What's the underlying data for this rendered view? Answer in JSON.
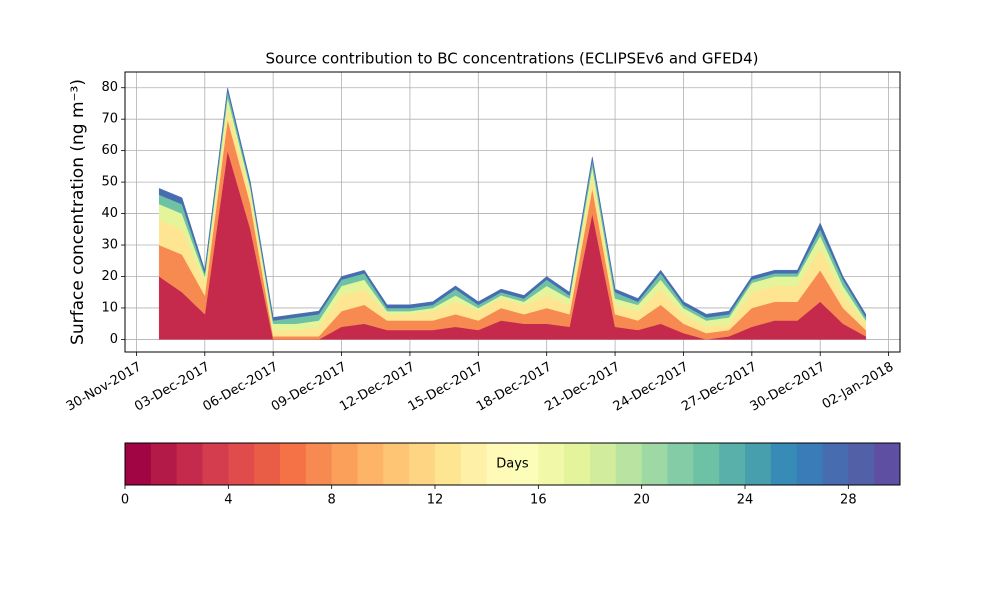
{
  "chart_data": {
    "type": "stacked_area",
    "title": "Source contribution to BC concentrations (ECLIPSEv6 and GFED4)",
    "y_label": "Surface concentration (ng m⁻³)",
    "x": [
      "2017-12-01",
      "2017-12-02",
      "2017-12-03",
      "2017-12-04",
      "2017-12-05",
      "2017-12-06",
      "2017-12-07",
      "2017-12-08",
      "2017-12-09",
      "2017-12-10",
      "2017-12-11",
      "2017-12-12",
      "2017-12-13",
      "2017-12-14",
      "2017-12-15",
      "2017-12-16",
      "2017-12-17",
      "2017-12-18",
      "2017-12-19",
      "2017-12-20",
      "2017-12-21",
      "2017-12-22",
      "2017-12-23",
      "2017-12-24",
      "2017-12-25",
      "2017-12-26",
      "2017-12-27",
      "2017-12-28",
      "2017-12-29",
      "2017-12-30",
      "2017-12-31",
      "2018-01-01"
    ],
    "series": [
      {
        "color": "#c52a4c",
        "values": [
          20,
          15,
          8,
          60,
          35,
          0,
          0,
          0,
          4,
          5,
          3,
          3,
          3,
          4,
          3,
          6,
          5,
          5,
          4,
          40,
          4,
          3,
          5,
          2,
          0,
          1,
          4,
          6,
          6,
          12,
          5,
          1
        ]
      },
      {
        "color": "#f78a51",
        "values": [
          10,
          12,
          6,
          10,
          8,
          1,
          1,
          1,
          5,
          6,
          3,
          3,
          3,
          4,
          3,
          4,
          3,
          5,
          4,
          8,
          4,
          3,
          6,
          3,
          2,
          2,
          6,
          6,
          6,
          10,
          5,
          2
        ]
      },
      {
        "color": "#fee592",
        "values": [
          8,
          8,
          4,
          4,
          3,
          2,
          2,
          3,
          5,
          5,
          2,
          2,
          3,
          4,
          3,
          3,
          3,
          4,
          3,
          4,
          3,
          3,
          5,
          3,
          2,
          2,
          5,
          5,
          5,
          7,
          4,
          2
        ]
      },
      {
        "color": "#e4f49a",
        "values": [
          5,
          5,
          2,
          3,
          2,
          2,
          2,
          2,
          3,
          3,
          1,
          1,
          1,
          2,
          1,
          1,
          1,
          3,
          2,
          3,
          2,
          2,
          3,
          2,
          2,
          2,
          3,
          3,
          3,
          4,
          3,
          1
        ]
      },
      {
        "color": "#6dc1a5",
        "values": [
          3,
          3,
          1,
          2,
          1,
          1,
          2,
          2,
          2,
          2,
          1,
          1,
          1,
          2,
          1,
          1,
          1,
          2,
          1,
          2,
          2,
          1,
          2,
          1,
          1,
          1,
          1,
          1,
          1,
          2,
          2,
          1
        ]
      },
      {
        "color": "#476db0",
        "values": [
          2,
          2,
          1,
          1,
          1,
          1,
          1,
          1,
          1,
          1,
          1,
          1,
          1,
          1,
          1,
          1,
          1,
          1,
          1,
          1,
          1,
          1,
          1,
          1,
          1,
          1,
          1,
          1,
          1,
          2,
          1,
          1
        ]
      }
    ],
    "xlim": [
      "2017-11-29T12:00",
      "2018-01-02T12:00"
    ],
    "xticks": [
      {
        "value": "2017-11-30",
        "label": "30-Nov-2017"
      },
      {
        "value": "2017-12-03",
        "label": "03-Dec-2017"
      },
      {
        "value": "2017-12-06",
        "label": "06-Dec-2017"
      },
      {
        "value": "2017-12-09",
        "label": "09-Dec-2017"
      },
      {
        "value": "2017-12-12",
        "label": "12-Dec-2017"
      },
      {
        "value": "2017-12-15",
        "label": "15-Dec-2017"
      },
      {
        "value": "2017-12-18",
        "label": "18-Dec-2017"
      },
      {
        "value": "2017-12-21",
        "label": "21-Dec-2017"
      },
      {
        "value": "2017-12-24",
        "label": "24-Dec-2017"
      },
      {
        "value": "2017-12-27",
        "label": "27-Dec-2017"
      },
      {
        "value": "2017-12-30",
        "label": "30-Dec-2017"
      },
      {
        "value": "2018-01-02",
        "label": "02-Jan-2018"
      }
    ],
    "ylim": [
      -4,
      85
    ],
    "yticks": [
      0,
      10,
      20,
      30,
      40,
      50,
      60,
      70,
      80
    ],
    "grid": true,
    "colorbar": {
      "label": "Days",
      "lim": [
        0,
        30
      ],
      "ticks": [
        0,
        4,
        8,
        12,
        16,
        20,
        24,
        28
      ],
      "colors": [
        "#a10543",
        "#b41a47",
        "#c52a4c",
        "#d33d4e",
        "#df4c4b",
        "#e95d47",
        "#f47245",
        "#f78a51",
        "#fba05b",
        "#fdb466",
        "#fdc574",
        "#fed683",
        "#fee592",
        "#fef0a6",
        "#fffab8",
        "#fbfdb9",
        "#f1f9a9",
        "#e4f49a",
        "#d0ec9c",
        "#b9e3a0",
        "#9ed8a4",
        "#83cca5",
        "#6dc1a5",
        "#59b0aa",
        "#479ead",
        "#378bb7",
        "#3a7cb8",
        "#476db0",
        "#5260a7",
        "#5e4fa2"
      ]
    }
  }
}
